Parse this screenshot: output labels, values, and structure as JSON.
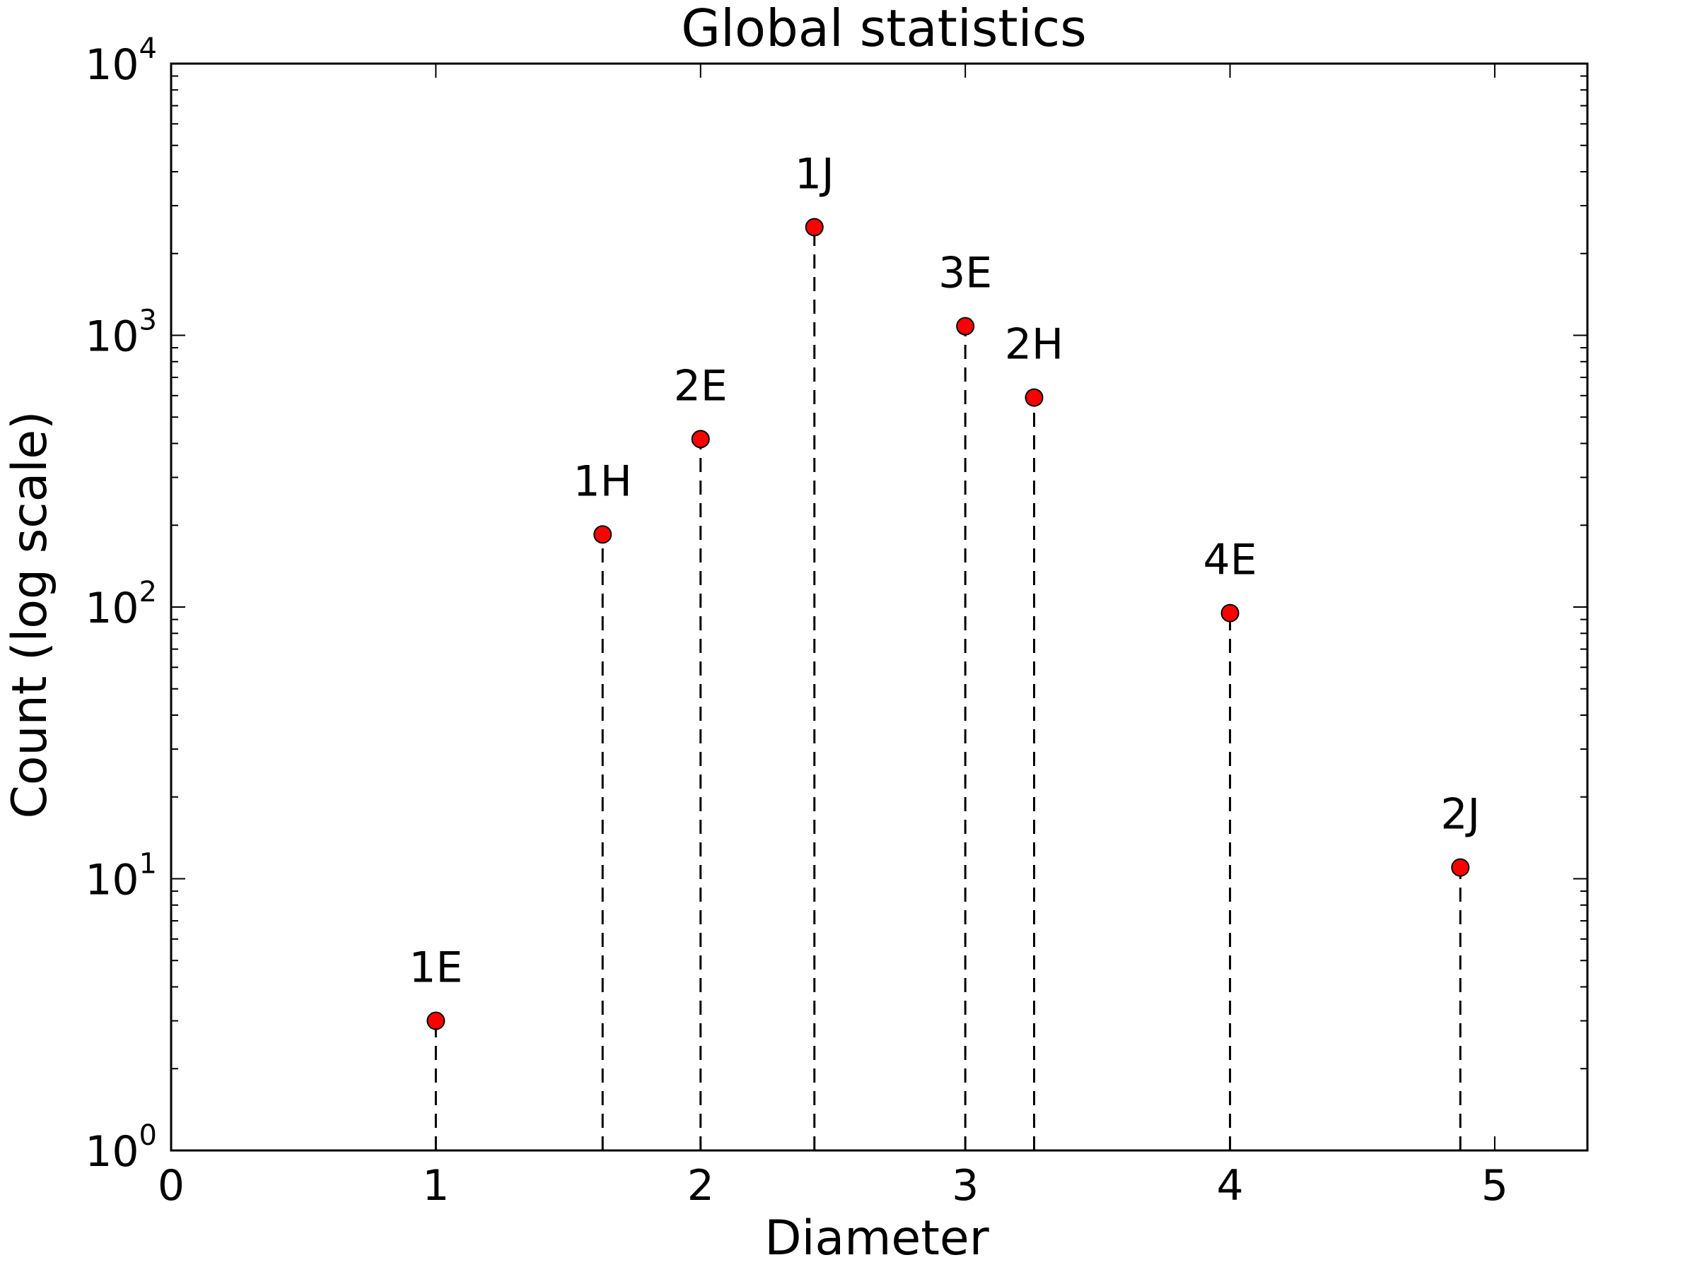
{
  "chart_data": {
    "type": "scatter",
    "title": "Global statistics",
    "xlabel": "Diameter",
    "ylabel": "Count (log scale)",
    "xlim": [
      0,
      5.35
    ],
    "ylim": [
      1,
      10000
    ],
    "yscale": "log",
    "x_ticks": [
      "0",
      "1",
      "2",
      "3",
      "4",
      "5"
    ],
    "y_ticks": [
      {
        "base": "10",
        "exp": "0"
      },
      {
        "base": "10",
        "exp": "1"
      },
      {
        "base": "10",
        "exp": "2"
      },
      {
        "base": "10",
        "exp": "3"
      },
      {
        "base": "10",
        "exp": "4"
      }
    ],
    "grid": false,
    "legend": "none",
    "marker_color": "#ff0000",
    "stem_style": "dashed",
    "points": [
      {
        "label": "1E",
        "x": 1.0,
        "y": 3
      },
      {
        "label": "1H",
        "x": 1.63,
        "y": 185
      },
      {
        "label": "2E",
        "x": 2.0,
        "y": 415
      },
      {
        "label": "1J",
        "x": 2.43,
        "y": 2500
      },
      {
        "label": "3E",
        "x": 3.0,
        "y": 1080
      },
      {
        "label": "2H",
        "x": 3.26,
        "y": 590
      },
      {
        "label": "4E",
        "x": 4.0,
        "y": 95
      },
      {
        "label": "2J",
        "x": 4.87,
        "y": 11
      }
    ]
  }
}
